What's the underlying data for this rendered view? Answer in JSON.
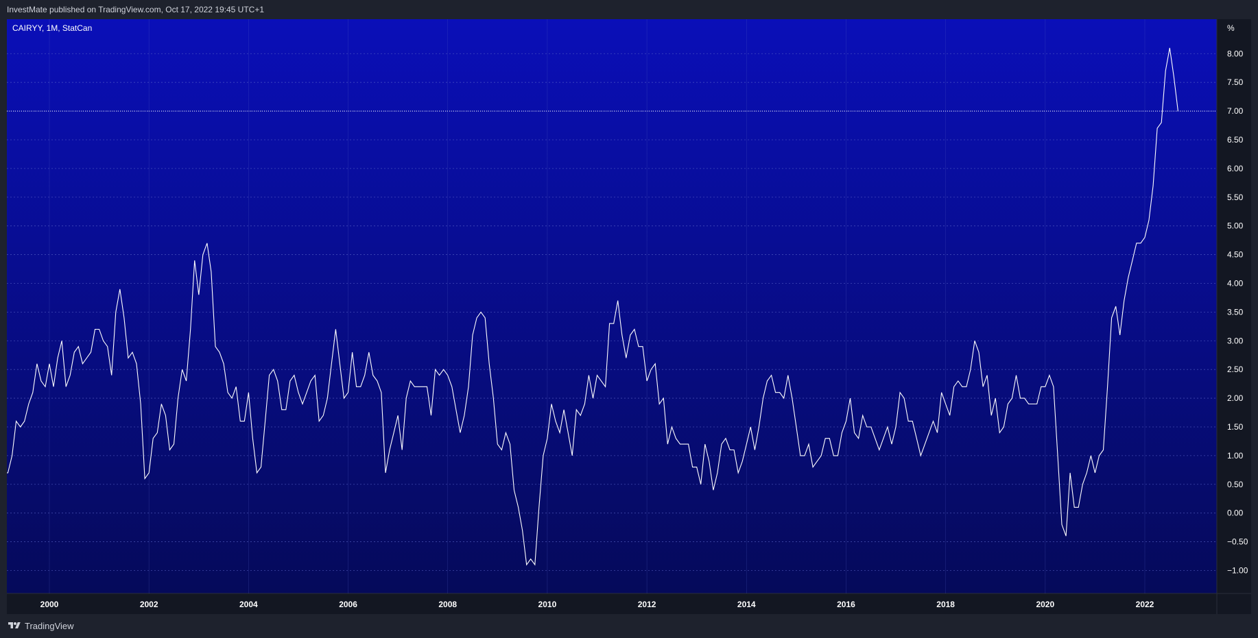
{
  "header": {
    "published_text": "InvestMate published on TradingView.com, Oct 17, 2022 19:45 UTC+1"
  },
  "chart": {
    "title": "CAIRYY, 1M, StatCan"
  },
  "footer": {
    "brand": "TradingView",
    "logo_icon": "tradingview-logo-icon"
  },
  "colors": {
    "page_background": "#1e222d",
    "plot_gradient_top": "#0a0fb8",
    "plot_gradient_bottom": "#050a5a",
    "line": "#ffffff",
    "grid": "#5a64c8"
  },
  "chart_data": {
    "type": "line",
    "frequency": "monthly",
    "start": "1999-01",
    "unit_label": "%",
    "ylim": [
      -1.4,
      8.6
    ],
    "y_ticks": [
      8.0,
      7.5,
      7.0,
      6.5,
      6.0,
      5.5,
      5.0,
      4.5,
      4.0,
      3.5,
      3.0,
      2.5,
      2.0,
      1.5,
      1.0,
      0.5,
      0.0,
      -0.5,
      -1.0
    ],
    "y_tick_labels": [
      "8.00",
      "7.50",
      "7.00",
      "6.50",
      "6.00",
      "5.50",
      "5.00",
      "4.50",
      "4.00",
      "3.50",
      "3.00",
      "2.50",
      "2.00",
      "1.50",
      "1.00",
      "0.50",
      "0.00",
      "−0.50",
      "−1.00"
    ],
    "x_ticks": [
      "2000",
      "2002",
      "2004",
      "2006",
      "2008",
      "2010",
      "2012",
      "2014",
      "2016",
      "2018",
      "2020",
      "2022"
    ],
    "grid": true,
    "last_value": 7.0,
    "series": [
      {
        "values": [
          0.8,
          0.7,
          0.7,
          1.0,
          1.6,
          1.5,
          1.6,
          1.9,
          2.1,
          2.6,
          2.3,
          2.2,
          2.6,
          2.2,
          2.7,
          3.0,
          2.2,
          2.4,
          2.8,
          2.9,
          2.6,
          2.7,
          2.8,
          3.2,
          3.2,
          3.0,
          2.9,
          2.4,
          3.5,
          3.9,
          3.4,
          2.7,
          2.8,
          2.6,
          1.9,
          0.6,
          0.7,
          1.3,
          1.4,
          1.9,
          1.7,
          1.1,
          1.2,
          2.0,
          2.5,
          2.3,
          3.2,
          4.4,
          3.8,
          4.5,
          4.7,
          4.2,
          2.9,
          2.8,
          2.6,
          2.1,
          2.0,
          2.2,
          1.6,
          1.6,
          2.1,
          1.3,
          0.7,
          0.8,
          1.6,
          2.4,
          2.5,
          2.3,
          1.8,
          1.8,
          2.3,
          2.4,
          2.1,
          1.9,
          2.1,
          2.3,
          2.4,
          1.6,
          1.7,
          2.0,
          2.6,
          3.2,
          2.6,
          2.0,
          2.1,
          2.8,
          2.2,
          2.2,
          2.4,
          2.8,
          2.4,
          2.3,
          2.1,
          0.7,
          1.1,
          1.4,
          1.7,
          1.1,
          2.0,
          2.3,
          2.2,
          2.2,
          2.2,
          2.2,
          1.7,
          2.5,
          2.4,
          2.5,
          2.4,
          2.2,
          1.8,
          1.4,
          1.7,
          2.2,
          3.1,
          3.4,
          3.5,
          3.4,
          2.6,
          2.0,
          1.2,
          1.1,
          1.4,
          1.2,
          0.4,
          0.1,
          -0.3,
          -0.9,
          -0.8,
          -0.9,
          0.1,
          1.0,
          1.3,
          1.9,
          1.6,
          1.4,
          1.8,
          1.4,
          1.0,
          1.8,
          1.7,
          1.9,
          2.4,
          2.0,
          2.4,
          2.3,
          2.2,
          3.3,
          3.3,
          3.7,
          3.1,
          2.7,
          3.1,
          3.2,
          2.9,
          2.9,
          2.3,
          2.5,
          2.6,
          1.9,
          2.0,
          1.2,
          1.5,
          1.3,
          1.2,
          1.2,
          1.2,
          0.8,
          0.8,
          0.5,
          1.2,
          0.9,
          0.4,
          0.7,
          1.2,
          1.3,
          1.1,
          1.1,
          0.7,
          0.9,
          1.2,
          1.5,
          1.1,
          1.5,
          2.0,
          2.3,
          2.4,
          2.1,
          2.1,
          2.0,
          2.4,
          2.0,
          1.5,
          1.0,
          1.0,
          1.2,
          0.8,
          0.9,
          1.0,
          1.3,
          1.3,
          1.0,
          1.0,
          1.4,
          1.6,
          2.0,
          1.4,
          1.3,
          1.7,
          1.5,
          1.5,
          1.3,
          1.1,
          1.3,
          1.5,
          1.2,
          1.5,
          2.1,
          2.0,
          1.6,
          1.6,
          1.3,
          1.0,
          1.2,
          1.4,
          1.6,
          1.4,
          2.1,
          1.9,
          1.7,
          2.2,
          2.3,
          2.2,
          2.2,
          2.5,
          3.0,
          2.8,
          2.2,
          2.4,
          1.7,
          2.0,
          1.4,
          1.5,
          1.9,
          2.0,
          2.4,
          2.0,
          2.0,
          1.9,
          1.9,
          1.9,
          2.2,
          2.2,
          2.4,
          2.2,
          1.0,
          -0.2,
          -0.4,
          0.7,
          0.1,
          0.1,
          0.5,
          0.7,
          1.0,
          0.7,
          1.0,
          1.1,
          2.2,
          3.4,
          3.6,
          3.1,
          3.7,
          4.1,
          4.4,
          4.7,
          4.7,
          4.8,
          5.1,
          5.7,
          6.7,
          6.8,
          7.7,
          8.1,
          7.6,
          7.0
        ]
      }
    ]
  }
}
